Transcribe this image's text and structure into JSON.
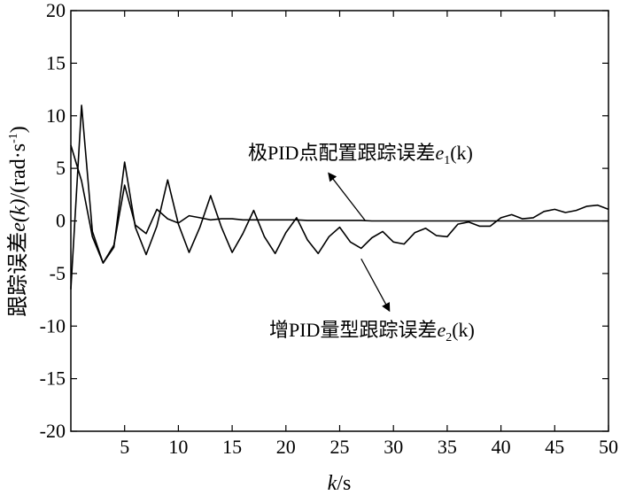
{
  "chart_data": {
    "type": "line",
    "title": "",
    "xlabel_var": "k",
    "xlabel_unit": "/s",
    "ylabel_prefix": "跟踪误差",
    "ylabel_var": "e(k)",
    "ylabel_unit": "/(rad·s",
    "ylabel_exp": "-1",
    "ylabel_close": ")",
    "xlim": [
      0,
      50
    ],
    "ylim": [
      -20,
      20
    ],
    "xticks": [
      5,
      10,
      15,
      20,
      25,
      30,
      35,
      40,
      45,
      50
    ],
    "yticks": [
      -20,
      -15,
      -10,
      -5,
      0,
      5,
      10,
      15,
      20
    ],
    "grid": false,
    "series": [
      {
        "name_prefix": "极PID点配置跟踪误差",
        "name_var": "e",
        "name_sub": "1",
        "name_suffix": "(k)",
        "color": "#000000",
        "x": [
          0,
          1,
          2,
          3,
          4,
          5,
          6,
          7,
          8,
          9,
          10,
          11,
          12,
          13,
          14,
          15,
          16,
          17,
          18,
          19,
          20,
          21,
          22,
          23,
          24,
          25,
          26,
          27,
          28,
          29,
          30,
          31,
          32,
          33,
          34,
          35,
          36,
          37,
          38,
          39,
          40,
          41,
          42,
          43,
          44,
          45,
          46,
          47,
          48,
          49,
          50
        ],
        "y": [
          7.2,
          3.8,
          -1.5,
          -4.0,
          -2.3,
          3.4,
          -0.4,
          -1.2,
          1.1,
          0.2,
          -0.2,
          0.5,
          0.3,
          0.1,
          0.2,
          0.2,
          0.1,
          0.1,
          0.1,
          0.1,
          0.1,
          0.1,
          0.05,
          0.05,
          0.05,
          0.05,
          0.05,
          0.05,
          0,
          0,
          0,
          0,
          0,
          0,
          0,
          0,
          0,
          0,
          0,
          0,
          0,
          0,
          0,
          0,
          0,
          0,
          0,
          0,
          0,
          0,
          0
        ]
      },
      {
        "name_prefix": "增PID量型跟踪误差",
        "name_var": "e",
        "name_sub": "2",
        "name_suffix": "(k)",
        "color": "#000000",
        "x": [
          0,
          1,
          2,
          3,
          4,
          5,
          6,
          7,
          8,
          9,
          10,
          11,
          12,
          13,
          14,
          15,
          16,
          17,
          18,
          19,
          20,
          21,
          22,
          23,
          24,
          25,
          26,
          27,
          28,
          29,
          30,
          31,
          32,
          33,
          34,
          35,
          36,
          37,
          38,
          39,
          40,
          41,
          42,
          43,
          44,
          45,
          46,
          47,
          48,
          49,
          50
        ],
        "y": [
          -6.5,
          11.0,
          -1.0,
          -4.0,
          -2.5,
          5.6,
          -0.6,
          -3.2,
          -0.5,
          3.9,
          -0.3,
          -3.0,
          -0.6,
          2.4,
          -0.6,
          -3.0,
          -1.2,
          1.0,
          -1.5,
          -3.1,
          -1.1,
          0.3,
          -1.8,
          -3.1,
          -1.5,
          -0.6,
          -2.0,
          -2.6,
          -1.6,
          -1.0,
          -2.0,
          -2.2,
          -1.1,
          -0.7,
          -1.4,
          -1.5,
          -0.3,
          -0.1,
          -0.5,
          -0.5,
          0.3,
          0.6,
          0.2,
          0.3,
          0.9,
          1.1,
          0.8,
          1.0,
          1.4,
          1.5,
          1.1
        ]
      }
    ],
    "annotations": [
      {
        "series_index": 0,
        "arrow_tip": [
          24.0,
          4.5
        ],
        "arrow_tail": [
          27.4,
          0.0
        ]
      },
      {
        "series_index": 1,
        "arrow_tip": [
          29.6,
          -8.5
        ],
        "arrow_tail": [
          27.0,
          -3.6
        ]
      }
    ]
  }
}
